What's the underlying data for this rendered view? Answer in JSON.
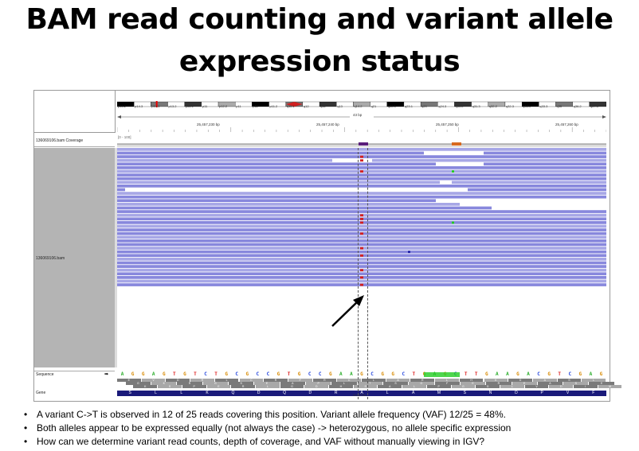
{
  "slide": {
    "title_line1": "BAM read counting and variant allele",
    "title_line2": "expression status",
    "bullets": [
      "A variant C->T is observed in 12 of 25 reads covering this position.  Variant allele frequency (VAF) 12/25 = 48%.",
      "Both alleles appear to be expressed equally (not always the case) -> heterozygous, no allele specific expression",
      "How can we determine variant read counts, depth of coverage, and VAF without manually viewing in IGV?"
    ]
  },
  "igv": {
    "ideogram_bands": [
      "p15.2",
      "p14.3",
      "p14.1",
      "p13.2",
      "p13.1",
      "p11",
      "p12.2",
      "p11",
      "p11",
      "p11.2",
      "q11.1",
      "q12",
      "q12",
      "q13",
      "q14.2",
      "q21",
      "q22.3",
      "q23.1",
      "q24",
      "q24.3",
      "q31.2",
      "q31.3",
      "q32.2",
      "q32.3",
      "q33.1",
      "q33.3",
      "q35",
      "q36.2",
      "q37.3"
    ],
    "span_label": "43 bp",
    "ruler_ticks": [
      "25,457,230 bp",
      "25,457,240 bp",
      "25,457,250 bp",
      "25,457,260 bp"
    ],
    "coverage_track_name": "136069106.bam Coverage",
    "coverage_scale": "[0 - 100]",
    "alignment_track_name": "136069106.bam",
    "sequence_track_name": "Sequence",
    "sequence_arrow": "➡",
    "gene_track_name": "Gene",
    "gene_label": "DNMT3A",
    "sequence_bases": [
      "A",
      "G",
      "G",
      "A",
      "G",
      "T",
      "G",
      "T",
      "C",
      "T",
      "G",
      "C",
      "G",
      "C",
      "C",
      "G",
      "T",
      "G",
      "C",
      "C",
      "G",
      "A",
      "A",
      "G",
      "C",
      "G",
      "G",
      "C",
      "T",
      "G",
      "A",
      "G",
      "C",
      "T",
      "T",
      "G",
      "A",
      "A",
      "G",
      "A",
      "C",
      "G",
      "T",
      "C",
      "G",
      "A",
      "G"
    ],
    "amino_row1": [
      "E",
      "V",
      "D",
      "R",
      "L",
      "C",
      "R",
      "F",
      "R",
      "C",
      "L",
      "A",
      "R",
      "L",
      "H",
      "K",
      "D",
      "A",
      "S",
      "L"
    ],
    "amino_row2": [
      "G",
      "K",
      "R",
      "G",
      "S",
      "E",
      "A",
      "P",
      "L",
      "T",
      "S",
      "G",
      "F",
      "E",
      "R",
      "E",
      "A",
      "S",
      "E"
    ],
    "amino_row3": [
      "K",
      "S",
      "P",
      "E",
      "R",
      "L",
      "G",
      "D",
      "H",
      "S",
      "A",
      "L",
      "P",
      "G",
      "G",
      "L",
      "V",
      "D",
      "I",
      "M"
    ],
    "gene_amino": [
      "S",
      "L",
      "L",
      "K",
      "Q",
      "D",
      "Q",
      "D",
      "R",
      "A",
      "L",
      "A",
      "M",
      "S",
      "N",
      "D",
      "P",
      "V",
      "F"
    ],
    "colors": {
      "read": "#8888dd",
      "read_light": "#a7a7e6",
      "mismatch": "#d42020",
      "sidebar": "#b4b4b4",
      "gene": "#1a1a7a",
      "green_variant": "#22cc22"
    }
  }
}
